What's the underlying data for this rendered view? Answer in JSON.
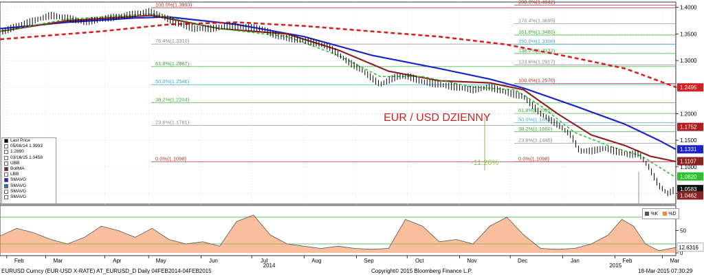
{
  "chart_data": {
    "type": "line",
    "title": "EUR / USD DZIENNY",
    "y_range": [
      1.03,
      1.41
    ],
    "y_ticks": [
      "1.4000",
      "1.3500",
      "1.3000",
      "1.2500",
      "1.2000",
      "1.1500",
      "1.1000",
      "1.0500"
    ],
    "x_ticks": [
      {
        "label": "Feb",
        "day": 4
      },
      {
        "label": "Mar",
        "day": 27
      },
      {
        "label": "Apr",
        "day": 62
      },
      {
        "label": "May",
        "day": 88
      },
      {
        "label": "Jun",
        "day": 119
      },
      {
        "label": "Jul",
        "day": 149
      },
      {
        "label": "Aug",
        "day": 180
      },
      {
        "label": "Sep",
        "day": 211
      },
      {
        "label": "Oct",
        "day": 241
      },
      {
        "label": "Nov",
        "day": 272
      },
      {
        "label": "Dec",
        "day": 302
      },
      {
        "label": "Jan",
        "day": 333
      },
      {
        "label": "Feb",
        "day": 364
      },
      {
        "label": "Mar",
        "day": 392
      }
    ],
    "year_labels": [
      {
        "label": "2014",
        "day": 152
      },
      {
        "label": "2015",
        "day": 357
      }
    ],
    "price_series": {
      "name": "Last Price",
      "color": "#000000",
      "points": [
        [
          0,
          1.352
        ],
        [
          10,
          1.365
        ],
        [
          20,
          1.375
        ],
        [
          30,
          1.385
        ],
        [
          40,
          1.38
        ],
        [
          50,
          1.372
        ],
        [
          60,
          1.378
        ],
        [
          75,
          1.385
        ],
        [
          88,
          1.392
        ],
        [
          95,
          1.385
        ],
        [
          105,
          1.37
        ],
        [
          115,
          1.36
        ],
        [
          125,
          1.36
        ],
        [
          135,
          1.365
        ],
        [
          145,
          1.363
        ],
        [
          155,
          1.36
        ],
        [
          165,
          1.345
        ],
        [
          175,
          1.34
        ],
        [
          185,
          1.335
        ],
        [
          195,
          1.325
        ],
        [
          205,
          1.3
        ],
        [
          215,
          1.28
        ],
        [
          225,
          1.255
        ],
        [
          235,
          1.27
        ],
        [
          242,
          1.27
        ],
        [
          250,
          1.26
        ],
        [
          260,
          1.255
        ],
        [
          270,
          1.25
        ],
        [
          280,
          1.245
        ],
        [
          290,
          1.25
        ],
        [
          300,
          1.24
        ],
        [
          310,
          1.232
        ],
        [
          320,
          1.2
        ],
        [
          330,
          1.18
        ],
        [
          338,
          1.16
        ],
        [
          343,
          1.13
        ],
        [
          350,
          1.13
        ],
        [
          358,
          1.135
        ],
        [
          366,
          1.128
        ],
        [
          372,
          1.123
        ],
        [
          378,
          1.125
        ],
        [
          384,
          1.1
        ],
        [
          390,
          1.065
        ],
        [
          395,
          1.05
        ],
        [
          400,
          1.058
        ]
      ]
    },
    "indicator_series": [
      {
        "name": "SMAVG",
        "color": "#1c24c8",
        "points": [
          [
            0,
            1.36
          ],
          [
            40,
            1.372
          ],
          [
            80,
            1.38
          ],
          [
            100,
            1.382
          ],
          [
            140,
            1.368
          ],
          [
            180,
            1.345
          ],
          [
            220,
            1.31
          ],
          [
            260,
            1.285
          ],
          [
            290,
            1.265
          ],
          [
            310,
            1.248
          ],
          [
            340,
            1.215
          ],
          [
            370,
            1.18
          ],
          [
            390,
            1.15
          ],
          [
            400,
            1.133
          ]
        ]
      },
      {
        "name": "SMAVG",
        "color": "#d42020",
        "points": [
          [
            0,
            1.34
          ],
          [
            60,
            1.355
          ],
          [
            100,
            1.368
          ],
          [
            140,
            1.372
          ],
          [
            180,
            1.365
          ],
          [
            220,
            1.355
          ],
          [
            260,
            1.345
          ],
          [
            300,
            1.33
          ],
          [
            340,
            1.305
          ],
          [
            370,
            1.285
          ],
          [
            400,
            1.25
          ]
        ]
      },
      {
        "name": "BollMA",
        "color": "#8b2323",
        "points": [
          [
            0,
            1.355
          ],
          [
            40,
            1.375
          ],
          [
            90,
            1.385
          ],
          [
            130,
            1.36
          ],
          [
            170,
            1.35
          ],
          [
            200,
            1.32
          ],
          [
            230,
            1.28
          ],
          [
            260,
            1.262
          ],
          [
            290,
            1.258
          ],
          [
            310,
            1.245
          ],
          [
            330,
            1.2
          ],
          [
            350,
            1.16
          ],
          [
            370,
            1.14
          ],
          [
            385,
            1.12
          ],
          [
            400,
            1.11
          ]
        ]
      },
      {
        "name": "SMAVG",
        "color": "#2ec12e",
        "dashed": true,
        "points": [
          [
            0,
            1.355
          ],
          [
            40,
            1.378
          ],
          [
            90,
            1.388
          ],
          [
            130,
            1.36
          ],
          [
            170,
            1.345
          ],
          [
            200,
            1.31
          ],
          [
            225,
            1.27
          ],
          [
            250,
            1.27
          ],
          [
            280,
            1.25
          ],
          [
            305,
            1.245
          ],
          [
            320,
            1.215
          ],
          [
            340,
            1.165
          ],
          [
            360,
            1.14
          ],
          [
            380,
            1.12
          ],
          [
            400,
            1.08
          ]
        ]
      }
    ],
    "fibo_levels": [
      {
        "label": "100.0%(1.3993)",
        "value": 1.3993,
        "color": "#b03030",
        "side": "left"
      },
      {
        "label": "76.4%(1.3310)",
        "value": 1.331,
        "color": "#888888",
        "side": "left"
      },
      {
        "label": "61.8%(1.2887)",
        "value": 1.2887,
        "color": "#33aa33",
        "side": "left"
      },
      {
        "label": "50.0%(1.2546)",
        "value": 1.2546,
        "color": "#33aacc",
        "side": "left"
      },
      {
        "label": "38.2%(1.2204)",
        "value": 1.2204,
        "color": "#33aa33",
        "side": "left"
      },
      {
        "label": "23.6%(1.1781)",
        "value": 1.1781,
        "color": "#888888",
        "side": "left"
      },
      {
        "label": "0.0%(1.1098)",
        "value": 1.1098,
        "color": "#b03030",
        "side": "left"
      },
      {
        "label": "200.0%(1.4042)",
        "value": 1.4042,
        "color": "#b03030",
        "side": "right"
      },
      {
        "label": "176.4%(1.3695)",
        "value": 1.3695,
        "color": "#888888",
        "side": "right"
      },
      {
        "label": "161.8%(1.3480)",
        "value": 1.348,
        "color": "#33aa33",
        "side": "right"
      },
      {
        "label": "150.0%(1.3306)",
        "value": 1.3306,
        "color": "#33aacc",
        "side": "right"
      },
      {
        "label": "138.2%(1.3132)",
        "value": 1.3132,
        "color": "#33aa33",
        "side": "right"
      },
      {
        "label": "123.6%(1.2917)",
        "value": 1.2917,
        "color": "#888888",
        "side": "right"
      },
      {
        "label": "100.0%(1.2570)",
        "value": 1.257,
        "color": "#b03030",
        "side": "right"
      },
      {
        "label": "61.8%(1.2005)",
        "value": 1.2005,
        "color": "#33aa33",
        "side": "right"
      },
      {
        "label": "50.0%(1.1834)",
        "value": 1.1834,
        "color": "#33aacc",
        "side": "right"
      },
      {
        "label": "38.2%(1.1660)",
        "value": 1.166,
        "color": "#33aa33",
        "side": "right"
      },
      {
        "label": "23.6%(1.1445)",
        "value": 1.1445,
        "color": "#888888",
        "side": "right"
      },
      {
        "label": "0.0%(1.1098)",
        "value": 1.1098,
        "color": "#b03030",
        "side": "right"
      }
    ],
    "annotation": "-11.26%",
    "price_tags": [
      {
        "label": "1.2495",
        "value": 1.2495,
        "bg": "#d42020",
        "fg": "#ffffff"
      },
      {
        "label": "1.1752",
        "value": 1.1752,
        "bg": "#b02020",
        "fg": "#ffffff"
      },
      {
        "label": "1.1331",
        "value": 1.1331,
        "bg": "#1c24c8",
        "fg": "#ffffff"
      },
      {
        "label": "1.1107",
        "value": 1.1107,
        "bg": "#8b2323",
        "fg": "#ffffff"
      },
      {
        "label": "1.0820",
        "value": 1.082,
        "bg": "#2ec12e",
        "fg": "#ffffff"
      },
      {
        "label": "1.0583",
        "value": 1.0583,
        "bg": "#111111",
        "fg": "#ffffff"
      },
      {
        "label": "1.0462",
        "value": 1.0462,
        "bg": "#8b2323",
        "fg": "#ffffff"
      }
    ],
    "stochastic": {
      "y_ticks": [
        "50",
        "0"
      ],
      "value_tag": "12.6316",
      "legend": [
        "%K",
        "%D"
      ],
      "colors": {
        "k": "#555555",
        "d": "#f08a4b"
      },
      "k_points": [
        [
          0,
          38
        ],
        [
          10,
          55
        ],
        [
          20,
          45
        ],
        [
          30,
          30
        ],
        [
          40,
          20
        ],
        [
          50,
          35
        ],
        [
          60,
          60
        ],
        [
          70,
          50
        ],
        [
          80,
          35
        ],
        [
          90,
          55
        ],
        [
          100,
          30
        ],
        [
          110,
          20
        ],
        [
          120,
          25
        ],
        [
          130,
          15
        ],
        [
          140,
          70
        ],
        [
          150,
          85
        ],
        [
          160,
          40
        ],
        [
          170,
          20
        ],
        [
          180,
          15
        ],
        [
          190,
          10
        ],
        [
          200,
          15
        ],
        [
          210,
          10
        ],
        [
          220,
          8
        ],
        [
          230,
          10
        ],
        [
          240,
          75
        ],
        [
          250,
          60
        ],
        [
          260,
          25
        ],
        [
          270,
          30
        ],
        [
          280,
          20
        ],
        [
          290,
          60
        ],
        [
          300,
          80
        ],
        [
          310,
          40
        ],
        [
          320,
          10
        ],
        [
          330,
          8
        ],
        [
          340,
          10
        ],
        [
          350,
          20
        ],
        [
          360,
          40
        ],
        [
          368,
          75
        ],
        [
          375,
          60
        ],
        [
          382,
          20
        ],
        [
          390,
          5
        ],
        [
          400,
          12
        ]
      ]
    }
  },
  "legend": {
    "title": "Last Price",
    "entries": [
      {
        "text": "05/08/14 1.3993",
        "color": "#ffffff"
      },
      {
        "text": "1.2890",
        "color": "#ffffff"
      },
      {
        "text": "03/16/15 1.0458",
        "color": "#ffffff"
      },
      {
        "text": "UBB",
        "color": "#ffffff"
      },
      {
        "text": "BollMA",
        "color": "#8b2323"
      },
      {
        "text": "LBB",
        "color": "#ffffff"
      },
      {
        "text": "SMAVG",
        "color": "#1c24c8"
      },
      {
        "text": "SMAVG",
        "color": "#1e78d4"
      },
      {
        "text": "SMAVG",
        "color": "#ffffff"
      },
      {
        "text": "SMAVG",
        "color": "#ffffff"
      }
    ]
  },
  "footer": {
    "left": "EURUSD Curncy (EUR-USD X-RATE) AT_EURUSD_D  Daily 04FEB2014-04FEB2015",
    "center": "Copyright© 2015 Bloomberg Finance L.P.",
    "right": "18-Mar-2015 07:30:29"
  },
  "colors": {
    "grid": "#cccccc",
    "axis": "#000000"
  }
}
